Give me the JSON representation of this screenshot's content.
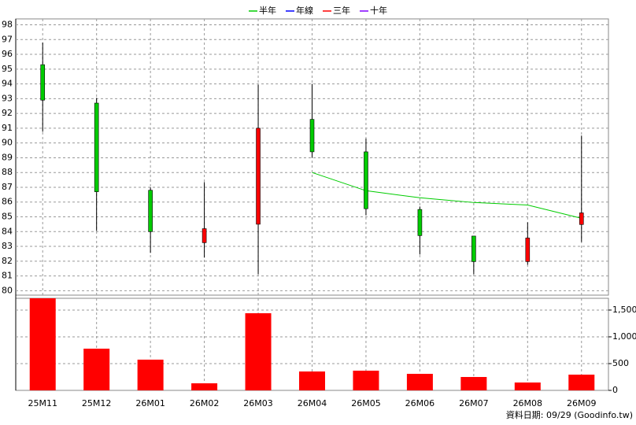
{
  "chart_data": {
    "type": "candlestick",
    "categories": [
      "25M11",
      "25M12",
      "26M01",
      "26M02",
      "26M03",
      "26M04",
      "26M05",
      "26M06",
      "26M07",
      "26M08",
      "26M09"
    ],
    "open": [
      95.3,
      92.7,
      86.8,
      83.25,
      84.5,
      91.6,
      89.4,
      85.5,
      83.7,
      81.97,
      84.48
    ],
    "high": [
      96.8,
      93.05,
      87.0,
      87.35,
      93.95,
      94.0,
      90.3,
      85.7,
      83.7,
      84.63,
      90.5
    ],
    "low": [
      90.76,
      84.05,
      82.56,
      82.24,
      81.12,
      89.0,
      85.1,
      82.45,
      81.12,
      81.76,
      83.3
    ],
    "close": [
      92.9,
      86.7,
      84.0,
      84.2,
      91.0,
      89.4,
      85.55,
      83.73,
      81.97,
      83.57,
      85.27
    ],
    "up_color": "#ff0000",
    "down_color": "#00cc00",
    "ylim": [
      79.7,
      98.4
    ],
    "yticks": [
      80,
      81,
      82,
      83,
      84,
      85,
      86,
      87,
      88,
      89,
      90,
      91,
      92,
      93,
      94,
      95,
      96,
      97,
      98
    ],
    "series": [
      {
        "name": "半年",
        "color": "#00cc00",
        "values": [
          null,
          null,
          null,
          null,
          null,
          88.0,
          86.77,
          86.29,
          85.97,
          85.8,
          84.9
        ]
      },
      {
        "name": "年線",
        "color": "#0000ff",
        "values": [
          null,
          null,
          null,
          null,
          null,
          null,
          null,
          null,
          null,
          null,
          null
        ]
      },
      {
        "name": "三年",
        "color": "#ff0000",
        "values": [
          null,
          null,
          null,
          null,
          null,
          null,
          null,
          null,
          null,
          null,
          null
        ]
      },
      {
        "name": "十年",
        "color": "#8000ff",
        "values": [
          null,
          null,
          null,
          null,
          null,
          null,
          null,
          null,
          null,
          null,
          null
        ]
      }
    ],
    "volume": {
      "values": [
        1720,
        779,
        574,
        132,
        1441,
        353,
        368,
        309,
        250,
        147,
        294
      ],
      "color": "#ff0000",
      "y2lim": [
        0,
        1720
      ],
      "y2ticks": [
        0,
        500,
        {
          "value": 1000,
          "label": "1,000"
        },
        {
          "value": 1500,
          "label": "1,500"
        }
      ]
    },
    "grid": true,
    "footer": "資料日期: 09/29 (Goodinfo.tw)"
  }
}
